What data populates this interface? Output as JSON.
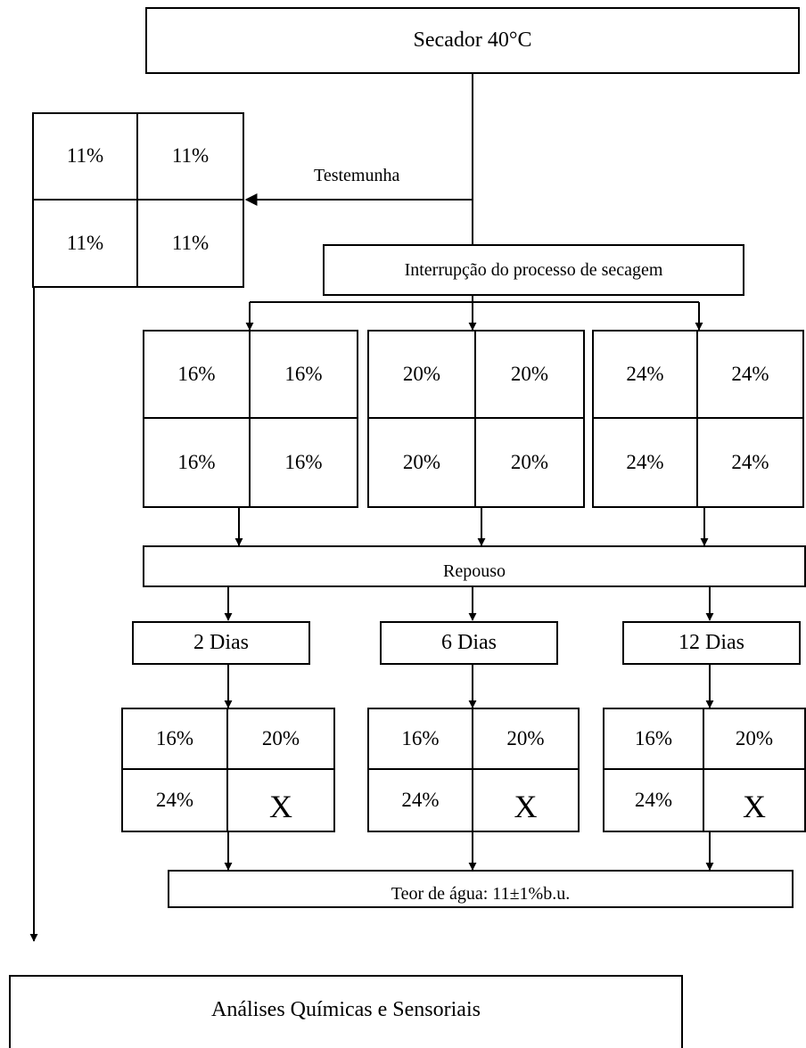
{
  "dryer": {
    "label": "Secador 40°C"
  },
  "control": {
    "label": "Testemunha",
    "cells": [
      "11%",
      "11%",
      "11%",
      "11%"
    ]
  },
  "interruption": {
    "label": "Interrupção do processo de secagem"
  },
  "moisture_groups": [
    {
      "cells": [
        "16%",
        "16%",
        "16%",
        "16%"
      ]
    },
    {
      "cells": [
        "20%",
        "20%",
        "20%",
        "20%"
      ]
    },
    {
      "cells": [
        "24%",
        "24%",
        "24%",
        "24%"
      ]
    }
  ],
  "rest": {
    "label": "Repouso"
  },
  "rest_periods": [
    {
      "label": "2 Dias",
      "cells": [
        "16%",
        "20%",
        "24%",
        "X"
      ]
    },
    {
      "label": "6 Dias",
      "cells": [
        "16%",
        "20%",
        "24%",
        "X"
      ]
    },
    {
      "label": "12 Dias",
      "cells": [
        "16%",
        "20%",
        "24%",
        "X"
      ]
    }
  ],
  "final_moisture": {
    "label": "Teor de água: 11±1%b.u."
  },
  "analysis": {
    "label": "Análises Químicas e Sensoriais"
  }
}
